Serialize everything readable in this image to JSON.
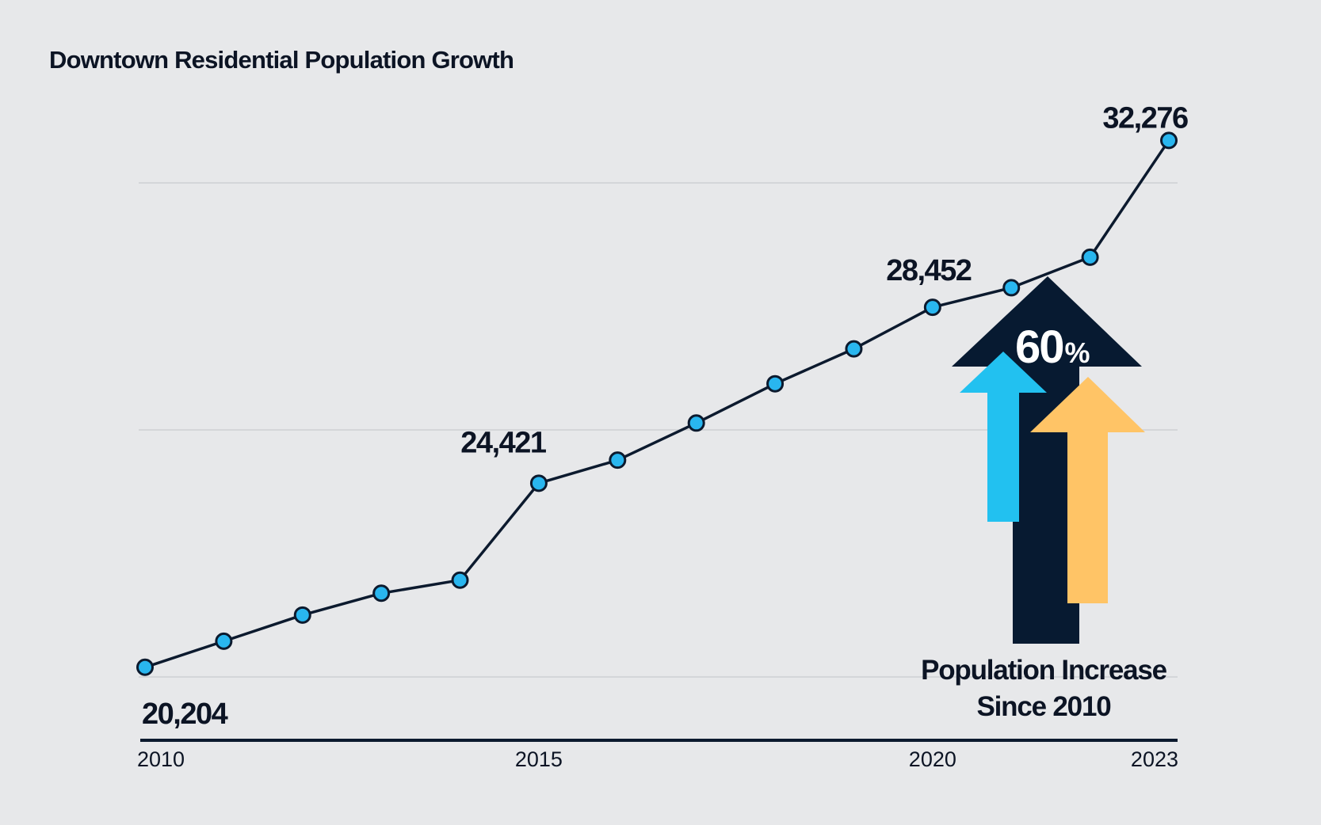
{
  "chart_data": {
    "type": "line",
    "title": "Downtown Residential Population Growth",
    "xlabel": "",
    "ylabel": "",
    "x": [
      2010,
      2011,
      2012,
      2013,
      2014,
      2015,
      2016,
      2017,
      2018,
      2019,
      2020,
      2021,
      2022,
      2023
    ],
    "series": [
      {
        "values": [
          20204,
          20800,
          21400,
          21900,
          22200,
          24421,
          24950,
          25800,
          26700,
          27500,
          28452,
          28900,
          29600,
          32276
        ]
      }
    ],
    "ylim": [
      20000,
      32500
    ],
    "xticks": [
      "2010",
      "2015",
      "2020",
      "2023"
    ],
    "data_labels": [
      "20,204",
      "24,421",
      "28,452",
      "32,276"
    ],
    "grid": true,
    "legend": "none",
    "colors": {
      "line": "#0c1a2e",
      "marker_fill": "#29b6ef",
      "marker_stroke": "#0c1a2e",
      "gridline": "#c9cbcf",
      "axis": "#0c1a2e",
      "arrow_dark": "#071a31",
      "arrow_blue": "#22c1f0",
      "arrow_orange": "#ffc466",
      "background": "#e7e8ea"
    }
  },
  "callout": {
    "percent_number": "60",
    "percent_sign": "%",
    "caption_line1": "Population Increase",
    "caption_line2": "Since 2010",
    "icon": "up-arrows-icon"
  }
}
